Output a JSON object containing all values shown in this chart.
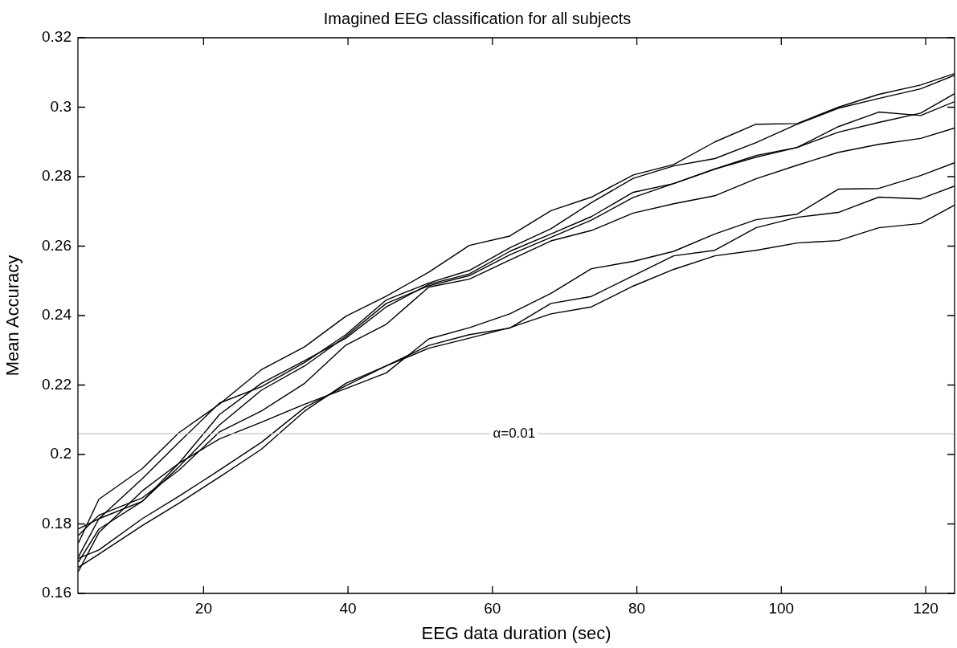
{
  "chart_data": {
    "type": "line",
    "title": "Imagined EEG classification for all subjects",
    "xlabel": "EEG data duration (sec)",
    "ylabel": "Mean Accuracy",
    "x": [
      2.66,
      5.5,
      11.5,
      16.6,
      22.2,
      28,
      34,
      39.7,
      45.3,
      51.2,
      56.8,
      62.4,
      68.1,
      73.7,
      79.5,
      85.1,
      90.8,
      96.5,
      102.2,
      107.9,
      113.5,
      119.3,
      124
    ],
    "series": [
      {
        "color": "#000000",
        "values": [
          0.1745,
          0.1871,
          0.1959,
          0.2063,
          0.2145,
          0.2244,
          0.231,
          0.2398,
          0.2456,
          0.2525,
          0.2602,
          0.2629,
          0.2702,
          0.2741,
          0.2805,
          0.2835,
          0.29,
          0.2951,
          0.2953,
          0.3,
          0.3037,
          0.3064,
          0.3097
        ]
      },
      {
        "color": "#000000",
        "values": [
          0.1705,
          0.1815,
          0.193,
          0.2035,
          0.2148,
          0.2195,
          0.2265,
          0.2345,
          0.2445,
          0.2494,
          0.253,
          0.2595,
          0.265,
          0.2725,
          0.2795,
          0.2831,
          0.2852,
          0.2898,
          0.2951,
          0.2997,
          0.3025,
          0.3053,
          0.3092
        ]
      },
      {
        "color": "#000000",
        "values": [
          0.1663,
          0.1775,
          0.1895,
          0.1975,
          0.2115,
          0.2205,
          0.227,
          0.2335,
          0.2425,
          0.249,
          0.252,
          0.2585,
          0.2635,
          0.2685,
          0.2755,
          0.278,
          0.2822,
          0.2861,
          0.2884,
          0.2928,
          0.2956,
          0.2983,
          0.3039
        ]
      },
      {
        "color": "#000000",
        "values": [
          0.169,
          0.1785,
          0.1865,
          0.1965,
          0.2085,
          0.2185,
          0.2255,
          0.234,
          0.2435,
          0.2486,
          0.2515,
          0.2575,
          0.2625,
          0.2675,
          0.274,
          0.278,
          0.2822,
          0.2856,
          0.2884,
          0.2944,
          0.2986,
          0.2976,
          0.3016
        ]
      },
      {
        "color": "#000000",
        "values": [
          0.1767,
          0.1825,
          0.1875,
          0.1955,
          0.2065,
          0.2125,
          0.2205,
          0.2315,
          0.2375,
          0.2482,
          0.2505,
          0.256,
          0.2615,
          0.2645,
          0.2695,
          0.2722,
          0.2745,
          0.2794,
          0.2833,
          0.287,
          0.2893,
          0.291,
          0.294
        ]
      },
      {
        "color": "#000000",
        "values": [
          0.1786,
          0.1815,
          0.1865,
          0.1975,
          0.2045,
          0.2093,
          0.2145,
          0.219,
          0.2235,
          0.2333,
          0.2365,
          0.2405,
          0.2464,
          0.2535,
          0.2556,
          0.2585,
          0.2635,
          0.2676,
          0.2692,
          0.2764,
          0.2766,
          0.2803,
          0.284
        ]
      },
      {
        "color": "#000000",
        "values": [
          0.1701,
          0.1725,
          0.1815,
          0.188,
          0.1955,
          0.2035,
          0.2135,
          0.2198,
          0.2255,
          0.2314,
          0.2345,
          0.2364,
          0.2435,
          0.2455,
          0.2515,
          0.2572,
          0.2588,
          0.2653,
          0.2683,
          0.2697,
          0.2741,
          0.2736,
          0.2773
        ]
      },
      {
        "color": "#000000",
        "values": [
          0.1675,
          0.1713,
          0.1795,
          0.186,
          0.1935,
          0.2015,
          0.2125,
          0.2205,
          0.2255,
          0.2306,
          0.2335,
          0.2365,
          0.2405,
          0.2425,
          0.2485,
          0.2533,
          0.2572,
          0.2588,
          0.2609,
          0.2616,
          0.2653,
          0.2665,
          0.2718
        ]
      }
    ],
    "xlim": [
      2.6,
      124
    ],
    "xticks": [
      20,
      40,
      60,
      80,
      100,
      120
    ],
    "ylim": [
      0.16,
      0.32
    ],
    "yticks": [
      0.16,
      0.18,
      0.2,
      0.22,
      0.24,
      0.26,
      0.28,
      0.3,
      0.32
    ],
    "ref_lines": [
      {
        "axis": "y",
        "value": 0.206,
        "color": "#c8c8c8"
      }
    ],
    "annotations": [
      {
        "text": "α=0.01",
        "x": 63,
        "y": 0.206
      }
    ],
    "grid": false,
    "legend": false,
    "marker": "none",
    "line_style": "solid"
  }
}
